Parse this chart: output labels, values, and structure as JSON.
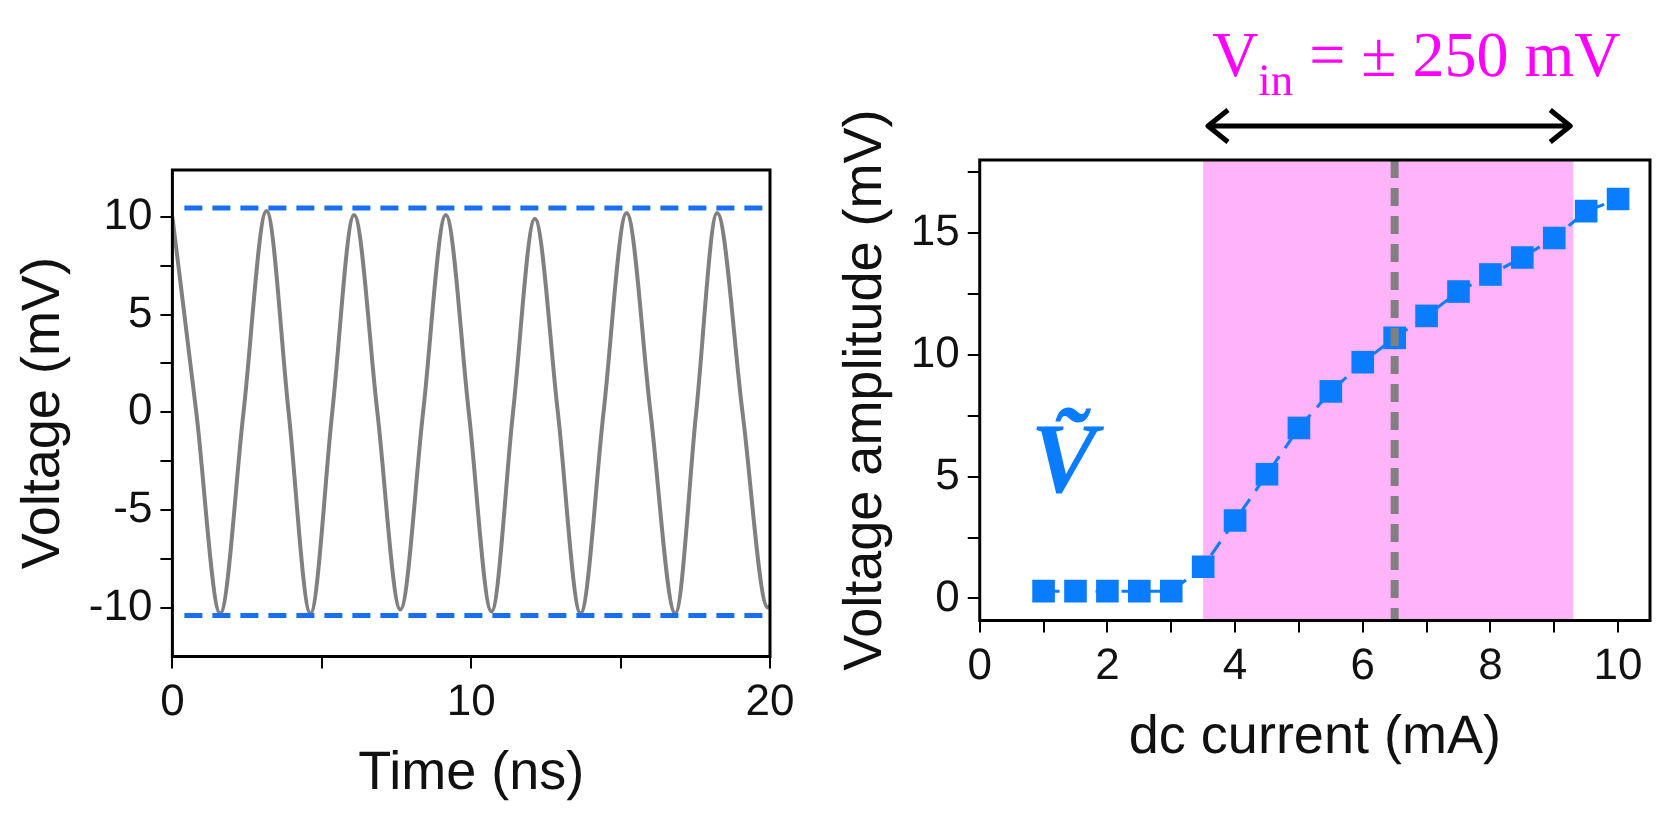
{
  "chart_data": [
    {
      "type": "line",
      "xlabel": "Time (ns)",
      "ylabel": "Voltage (mV)",
      "xlim": [
        0,
        20
      ],
      "ylim": [
        -12.5,
        12.4
      ],
      "xticks": [
        0,
        {
          "value": 5,
          "label": null
        },
        10,
        {
          "value": 15,
          "label": null
        },
        20
      ],
      "yticks": [
        -10,
        {
          "value": -7.5,
          "label": null
        },
        -5,
        {
          "value": -2.5,
          "label": null
        },
        0,
        {
          "value": 2.5,
          "label": null
        },
        5,
        {
          "value": 7.5,
          "label": null
        },
        10
      ],
      "grid": false,
      "legend": false,
      "marker": "none",
      "line_style": "solid",
      "x": [
        0,
        0.8,
        1.6,
        2.38,
        3.15,
        3.89,
        4.62,
        5.35,
        6.08,
        6.86,
        7.63,
        8.39,
        9.15,
        9.92,
        10.68,
        11.4,
        12.13,
        12.9,
        13.66,
        14.43,
        15.2,
        16.0,
        16.83,
        17.53,
        18.23,
        19.08,
        19.93,
        20
      ],
      "series": [
        {
          "color": "#808080",
          "values": [
            10,
            0,
            -10.3,
            0,
            10.3,
            0,
            -10.3,
            0,
            10.1,
            0,
            -10.1,
            0,
            10.1,
            0,
            -10.2,
            0,
            9.9,
            0,
            -10.3,
            0,
            10.2,
            0,
            -10.3,
            0,
            10.2,
            0,
            -10,
            -9.9
          ]
        }
      ],
      "ref_lines": [
        {
          "axis": "y",
          "value": 10.45,
          "color": "#1a6ef5",
          "line_style": "dashed"
        },
        {
          "axis": "y",
          "value": -10.4,
          "color": "#1a6ef5",
          "line_style": "dashed"
        }
      ]
    },
    {
      "type": "line",
      "xlabel": "dc current (mA)",
      "ylabel": "Voltage amplitude (mV)",
      "xlim": [
        0,
        10.5
      ],
      "ylim": [
        -0.9,
        18
      ],
      "xticks": [
        0,
        {
          "value": 1,
          "label": null
        },
        2,
        {
          "value": 3,
          "label": null
        },
        4,
        {
          "value": 5,
          "label": null
        },
        6,
        {
          "value": 7,
          "label": null
        },
        8,
        {
          "value": 9,
          "label": null
        },
        10
      ],
      "yticks": [
        0,
        {
          "value": 2.5,
          "label": null
        },
        5,
        {
          "value": 7.5,
          "label": null
        },
        10,
        {
          "value": 12.5,
          "label": null
        },
        15,
        {
          "value": 17.5,
          "label": null
        }
      ],
      "grid": false,
      "legend": false,
      "marker": "square",
      "line_style": "dashed",
      "x": [
        1,
        1.5,
        2,
        2.5,
        3,
        3.5,
        4,
        4.5,
        5,
        5.5,
        6,
        6.5,
        7,
        7.5,
        8,
        8.5,
        9,
        9.5,
        10
      ],
      "series": [
        {
          "color": "#0a7cff",
          "values": [
            0.3,
            0.3,
            0.3,
            0.3,
            0.3,
            1.3,
            3.2,
            5.1,
            7.0,
            8.5,
            9.7,
            10.7,
            11.6,
            12.6,
            13.3,
            14.0,
            14.8,
            15.9,
            16.4
          ]
        }
      ],
      "bands": [
        {
          "axis": "x",
          "from": 3.5,
          "to": 9.3,
          "label": "V$_{in}$ = ± 250 mV",
          "color": "#ffb3f9"
        }
      ],
      "ref_lines": [
        {
          "axis": "x",
          "value": 6.5,
          "color": "#808080",
          "line_style": "dashed"
        }
      ],
      "annotations": [
        "Ṽ"
      ]
    }
  ]
}
